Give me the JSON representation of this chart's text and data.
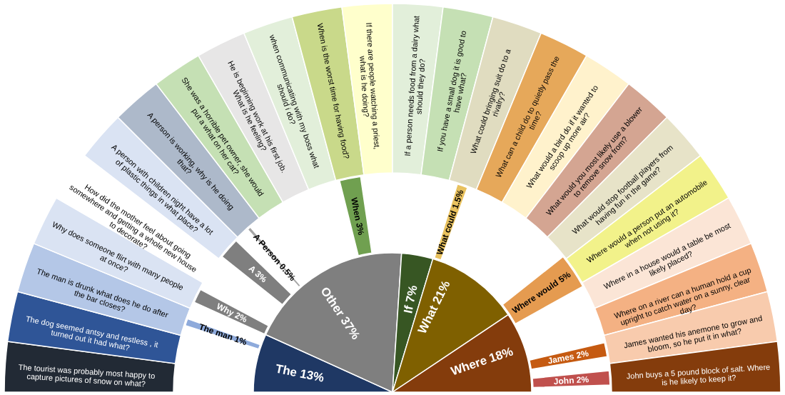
{
  "chart_data": {
    "type": "other",
    "categories": [
      "The tourist was probably most happy to capture pictures of snow on what?",
      "The dog seemed antsy and restless , it turned out it had what?",
      "The man is drunk what does he do after the bar closes?",
      "Why does someone flirt with many people at once?",
      "How did the mother feel about going somewhere and getting a whole new house to decorate?",
      "A person with children night have a lot of plastic things in what place?",
      "A person is working, why is he doing that?",
      "She was a horrible pet owner, she would put a what on her cat?",
      "He is beginning work at his first job. What is he feeling?",
      "when communicating with my boss what should i do?",
      "When is the worst time for having food?",
      "If there are people watching a priest, what is he doing?",
      "If a person needs food from a dairy what should they do?",
      "If you have a small dog it is good to have what?",
      "What could bringing suit do to a rivalry?",
      "What can a child do to quietly pass the time?",
      "What would a bird do if it wanted to scoop up more air?",
      "What would you most likely use a blower to remove snow from?",
      "What would stop football players from having fun in the game?",
      "Where would a person put an automobile when not using it?",
      "Where in a house would a table be most likely placed?",
      "Where on a river can a human hold a cup upright to catch water on a sunny, clear day?",
      "James wanted his anemone to grow and bloom, so he put it in what?",
      "John buys a 5 pound block of salt. Where is he likely to keep it?"
    ],
    "colors": [
      "#222a35",
      "#2f5597",
      "#b4c7e7",
      "#dae3f3",
      "#ffffff",
      "#dae3f3",
      "#adb9ca",
      "#c5e0b4",
      "#e7e6e6",
      "#e2efda",
      "#c9d98a",
      "#ffffcc",
      "#e2efda",
      "#c5e0b4",
      "#e0dcc0",
      "#e6a85a",
      "#fff2cc",
      "#d4a592",
      "#e7e3c8",
      "#f2f28a",
      "#fbe5d6",
      "#f4b183",
      "#f8cbad",
      "#843c0c"
    ],
    "series": [
      {
        "color": "#1f3864",
        "values": [
          null,
          13,
          null,
          null,
          null,
          null,
          null,
          null,
          null,
          null,
          null,
          null,
          null,
          null,
          null,
          null,
          null,
          null,
          null,
          null,
          null,
          null,
          null,
          null
        ],
        "value_labels": [
          null,
          "The 13%",
          null,
          null,
          null,
          null,
          null,
          null,
          null,
          null,
          null,
          null,
          null,
          null,
          null,
          null,
          null,
          null,
          null,
          null,
          null,
          null,
          null,
          null
        ]
      },
      {
        "color": "#7f7f7f",
        "values": [
          null,
          null,
          null,
          null,
          null,
          null,
          null,
          37,
          null,
          null,
          null,
          null,
          null,
          null,
          null,
          null,
          null,
          null,
          null,
          null,
          null,
          null,
          null,
          null
        ],
        "value_labels": [
          null,
          null,
          null,
          null,
          null,
          null,
          null,
          "Other 37%",
          null,
          null,
          null,
          null,
          null,
          null,
          null,
          null,
          null,
          null,
          null,
          null,
          null,
          null,
          null,
          null
        ]
      },
      {
        "color": "#375623",
        "values": [
          null,
          null,
          null,
          null,
          null,
          null,
          null,
          null,
          null,
          null,
          null,
          null,
          null,
          7,
          null,
          null,
          null,
          null,
          null,
          null,
          null,
          null,
          null,
          null
        ],
        "value_labels": [
          null,
          null,
          null,
          null,
          null,
          null,
          null,
          null,
          null,
          null,
          null,
          null,
          null,
          "If 7%",
          null,
          null,
          null,
          null,
          null,
          null,
          null,
          null,
          null,
          null
        ]
      },
      {
        "color": "#7f6000",
        "values": [
          null,
          null,
          null,
          null,
          null,
          null,
          null,
          null,
          null,
          null,
          null,
          null,
          null,
          null,
          null,
          21,
          null,
          null,
          null,
          null,
          null,
          null,
          null,
          null
        ],
        "value_labels": [
          null,
          null,
          null,
          null,
          null,
          null,
          null,
          null,
          null,
          null,
          null,
          null,
          null,
          null,
          null,
          "What 21%",
          null,
          null,
          null,
          null,
          null,
          null,
          null,
          null
        ]
      },
      {
        "color": "#843c0c",
        "values": [
          null,
          null,
          null,
          null,
          null,
          null,
          null,
          null,
          null,
          null,
          null,
          null,
          null,
          null,
          null,
          null,
          null,
          null,
          null,
          null,
          null,
          18,
          null,
          null
        ],
        "value_labels": [
          null,
          null,
          null,
          null,
          null,
          null,
          null,
          null,
          null,
          null,
          null,
          null,
          null,
          null,
          null,
          null,
          null,
          null,
          null,
          null,
          null,
          "Where 18%",
          null,
          null
        ]
      },
      {
        "axis": "y2",
        "color": "#8eaadb",
        "values": [
          null,
          null,
          1,
          null,
          null,
          null,
          null,
          null,
          null,
          null,
          null,
          null,
          null,
          null,
          null,
          null,
          null,
          null,
          null,
          null,
          null,
          null,
          null,
          null
        ],
        "value_labels": [
          null,
          null,
          "The man 1%",
          null,
          null,
          null,
          null,
          null,
          null,
          null,
          null,
          null,
          null,
          null,
          null,
          null,
          null,
          null,
          null,
          null,
          null,
          null,
          null,
          null
        ]
      },
      {
        "axis": "y2",
        "color": "#7f7f7f",
        "values": [
          null,
          null,
          null,
          2,
          null,
          null,
          null,
          null,
          null,
          null,
          null,
          null,
          null,
          null,
          null,
          null,
          null,
          null,
          null,
          null,
          null,
          null,
          null,
          null
        ],
        "value_labels": [
          null,
          null,
          null,
          "Why 2%",
          null,
          null,
          null,
          null,
          null,
          null,
          null,
          null,
          null,
          null,
          null,
          null,
          null,
          null,
          null,
          null,
          null,
          null,
          null,
          null
        ]
      },
      {
        "axis": "y2",
        "color": "#7f7f7f",
        "values": [
          null,
          null,
          null,
          null,
          null,
          3,
          null,
          null,
          null,
          null,
          null,
          null,
          null,
          null,
          null,
          null,
          null,
          null,
          null,
          null,
          null,
          null,
          null,
          null
        ],
        "value_labels": [
          null,
          null,
          null,
          null,
          null,
          "A 3%",
          null,
          null,
          null,
          null,
          null,
          null,
          null,
          null,
          null,
          null,
          null,
          null,
          null,
          null,
          null,
          null,
          null,
          null
        ]
      },
      {
        "axis": "y2",
        "color": "#a5a5a5",
        "values": [
          null,
          null,
          null,
          null,
          null,
          null,
          0.5,
          null,
          null,
          null,
          null,
          null,
          null,
          null,
          null,
          null,
          null,
          null,
          null,
          null,
          null,
          null,
          null,
          null
        ],
        "value_labels": [
          null,
          null,
          null,
          null,
          null,
          null,
          "A Person 0.5%",
          null,
          null,
          null,
          null,
          null,
          null,
          null,
          null,
          null,
          null,
          null,
          null,
          null,
          null,
          null,
          null,
          null
        ]
      },
      {
        "axis": "y2",
        "color": "#70a050",
        "values": [
          null,
          null,
          null,
          null,
          null,
          null,
          null,
          null,
          null,
          null,
          3,
          null,
          null,
          null,
          null,
          null,
          null,
          null,
          null,
          null,
          null,
          null,
          null,
          null
        ],
        "value_labels": [
          null,
          null,
          null,
          null,
          null,
          null,
          null,
          null,
          null,
          null,
          "When 3%",
          null,
          null,
          null,
          null,
          null,
          null,
          null,
          null,
          null,
          null,
          null,
          null,
          null
        ]
      },
      {
        "axis": "y2",
        "color": "#e8c15e",
        "values": [
          null,
          null,
          null,
          null,
          null,
          null,
          null,
          null,
          null,
          null,
          null,
          null,
          null,
          null,
          1.5,
          null,
          null,
          null,
          null,
          null,
          null,
          null,
          null,
          null
        ],
        "value_labels": [
          null,
          null,
          null,
          null,
          null,
          null,
          null,
          null,
          null,
          null,
          null,
          null,
          null,
          null,
          "What could 1.5%",
          null,
          null,
          null,
          null,
          null,
          null,
          null,
          null,
          null
        ]
      },
      {
        "axis": "y2",
        "color": "#e59b50",
        "values": [
          null,
          null,
          null,
          null,
          null,
          null,
          null,
          null,
          null,
          null,
          null,
          null,
          null,
          null,
          null,
          null,
          null,
          null,
          null,
          5,
          null,
          null,
          null,
          null
        ],
        "value_labels": [
          null,
          null,
          null,
          null,
          null,
          null,
          null,
          null,
          null,
          null,
          null,
          null,
          null,
          null,
          null,
          null,
          null,
          null,
          null,
          "Where would 5%",
          null,
          null,
          null,
          null
        ]
      },
      {
        "axis": "y2",
        "color": "#c55a11",
        "values": [
          null,
          null,
          null,
          null,
          null,
          null,
          null,
          null,
          null,
          null,
          null,
          null,
          null,
          null,
          null,
          null,
          null,
          null,
          null,
          null,
          null,
          null,
          2,
          null
        ],
        "value_labels": [
          null,
          null,
          null,
          null,
          null,
          null,
          null,
          null,
          null,
          null,
          null,
          null,
          null,
          null,
          null,
          null,
          null,
          null,
          null,
          null,
          null,
          null,
          "James 2%",
          null
        ]
      },
      {
        "axis": "y2",
        "color": "#c0504d",
        "values": [
          null,
          null,
          null,
          null,
          null,
          null,
          null,
          null,
          null,
          null,
          null,
          null,
          null,
          null,
          null,
          null,
          null,
          null,
          null,
          null,
          null,
          null,
          null,
          2
        ],
        "value_labels": [
          null,
          null,
          null,
          null,
          null,
          null,
          null,
          null,
          null,
          null,
          null,
          null,
          null,
          null,
          null,
          null,
          null,
          null,
          null,
          null,
          null,
          null,
          null,
          "John 2%"
        ]
      }
    ]
  }
}
